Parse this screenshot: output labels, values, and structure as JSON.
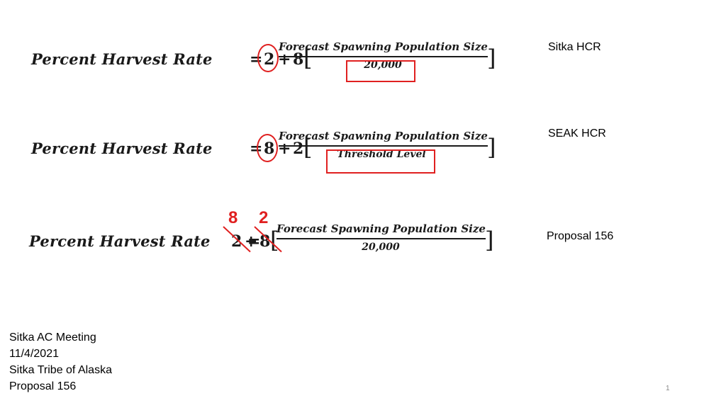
{
  "formulas": [
    {
      "lhs": "Percent Harvest Rate",
      "eq": "=",
      "term1": "2",
      "plus": "+",
      "term2": "8",
      "numerator": "Forecast Spawning Population Size",
      "denominator": "20,000",
      "label": "Sitka HCR"
    },
    {
      "lhs": "Percent Harvest Rate",
      "eq": "=",
      "term1": "8",
      "plus": "+",
      "term2": "2",
      "numerator": "Forecast Spawning Population Size",
      "denominator": "Threshold Level",
      "label": "SEAK HCR"
    },
    {
      "lhs": "Percent Harvest Rate",
      "eq": "=",
      "term1": "2",
      "plus": "+",
      "term2": "8",
      "numerator": "Forecast Spawning Population Size",
      "denominator": "20,000",
      "label": "Proposal 156",
      "replacement_term1": "8",
      "replacement_term2": "2"
    }
  ],
  "bracket_open": "[",
  "bracket_close": "]",
  "footer": {
    "line1": "Sitka AC Meeting",
    "line2": "11/4/2021",
    "line3": "Sitka Tribe of Alaska",
    "line4": "Proposal 156"
  },
  "page_number": "1",
  "accent_color": "#e02020"
}
